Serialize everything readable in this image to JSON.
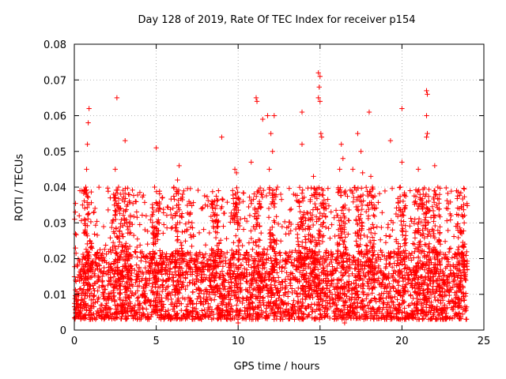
{
  "chart_data": {
    "type": "scatter",
    "title": "Day 128 of 2019, Rate Of TEC Index for receiver p154",
    "xlabel": "GPS time / hours",
    "ylabel": "ROTI / TECUs",
    "xlim": [
      0,
      25
    ],
    "ylim": [
      0,
      0.08
    ],
    "xticks": [
      0,
      5,
      10,
      15,
      20,
      25
    ],
    "xtick_labels": [
      "0",
      "5",
      "10",
      "15",
      "20",
      "25"
    ],
    "yticks": [
      0,
      0.01,
      0.02,
      0.03,
      0.04,
      0.05,
      0.06,
      0.07,
      0.08
    ],
    "ytick_labels": [
      "0",
      "0.01",
      "0.02",
      "0.03",
      "0.04",
      "0.05",
      "0.06",
      "0.07",
      "0.08"
    ],
    "grid": true,
    "marker": "+",
    "color": "#ff0000",
    "series": [
      {
        "name": "ROTI",
        "points": [
          [
            0.3,
            0.032
          ],
          [
            0.5,
            0.035
          ],
          [
            0.8,
            0.052
          ],
          [
            0.85,
            0.058
          ],
          [
            0.9,
            0.062
          ],
          [
            0.75,
            0.045
          ],
          [
            0.7,
            0.04
          ],
          [
            2.6,
            0.065
          ],
          [
            2.5,
            0.045
          ],
          [
            2.7,
            0.04
          ],
          [
            3.1,
            0.053
          ],
          [
            2.4,
            0.038
          ],
          [
            5.0,
            0.051
          ],
          [
            4.9,
            0.04
          ],
          [
            6.4,
            0.046
          ],
          [
            6.3,
            0.042
          ],
          [
            7.0,
            0.036
          ],
          [
            8.4,
            0.036
          ],
          [
            8.8,
            0.039
          ],
          [
            9.0,
            0.054
          ],
          [
            9.8,
            0.045
          ],
          [
            9.9,
            0.044
          ],
          [
            10.3,
            0.036
          ],
          [
            10.8,
            0.047
          ],
          [
            11.1,
            0.065
          ],
          [
            11.15,
            0.064
          ],
          [
            11.5,
            0.059
          ],
          [
            11.8,
            0.06
          ],
          [
            12.0,
            0.055
          ],
          [
            12.2,
            0.06
          ],
          [
            12.1,
            0.05
          ],
          [
            11.9,
            0.045
          ],
          [
            12.4,
            0.04
          ],
          [
            12.6,
            0.038
          ],
          [
            13.9,
            0.061
          ],
          [
            13.9,
            0.052
          ],
          [
            14.6,
            0.043
          ],
          [
            14.4,
            0.036
          ],
          [
            14.9,
            0.072
          ],
          [
            15.0,
            0.071
          ],
          [
            14.95,
            0.068
          ],
          [
            14.9,
            0.065
          ],
          [
            15.0,
            0.064
          ],
          [
            15.05,
            0.055
          ],
          [
            15.1,
            0.054
          ],
          [
            15.3,
            0.034
          ],
          [
            16.3,
            0.052
          ],
          [
            16.4,
            0.048
          ],
          [
            16.2,
            0.045
          ],
          [
            17.0,
            0.045
          ],
          [
            17.3,
            0.055
          ],
          [
            17.5,
            0.05
          ],
          [
            17.6,
            0.044
          ],
          [
            18.0,
            0.061
          ],
          [
            18.1,
            0.043
          ],
          [
            18.2,
            0.04
          ],
          [
            18.0,
            0.038
          ],
          [
            19.3,
            0.053
          ],
          [
            20.0,
            0.062
          ],
          [
            20.0,
            0.047
          ],
          [
            19.9,
            0.04
          ],
          [
            20.5,
            0.039
          ],
          [
            21.0,
            0.045
          ],
          [
            21.3,
            0.038
          ],
          [
            21.5,
            0.067
          ],
          [
            21.55,
            0.066
          ],
          [
            21.5,
            0.06
          ],
          [
            21.55,
            0.055
          ],
          [
            21.5,
            0.054
          ],
          [
            22.0,
            0.046
          ],
          [
            22.1,
            0.035
          ],
          [
            23.0,
            0.032
          ],
          [
            23.5,
            0.034
          ],
          [
            23.8,
            0.03
          ],
          [
            10.0,
            0.002
          ],
          [
            16.5,
            0.002
          ],
          [
            4.0,
            0.003
          ],
          [
            22.5,
            0.003
          ]
        ],
        "band": {
          "description": "dense cloud of points covering GPS time 0-24 h",
          "base_min": 0.003,
          "base_typical_max": 0.022,
          "spike_max": 0.04
        }
      }
    ]
  }
}
